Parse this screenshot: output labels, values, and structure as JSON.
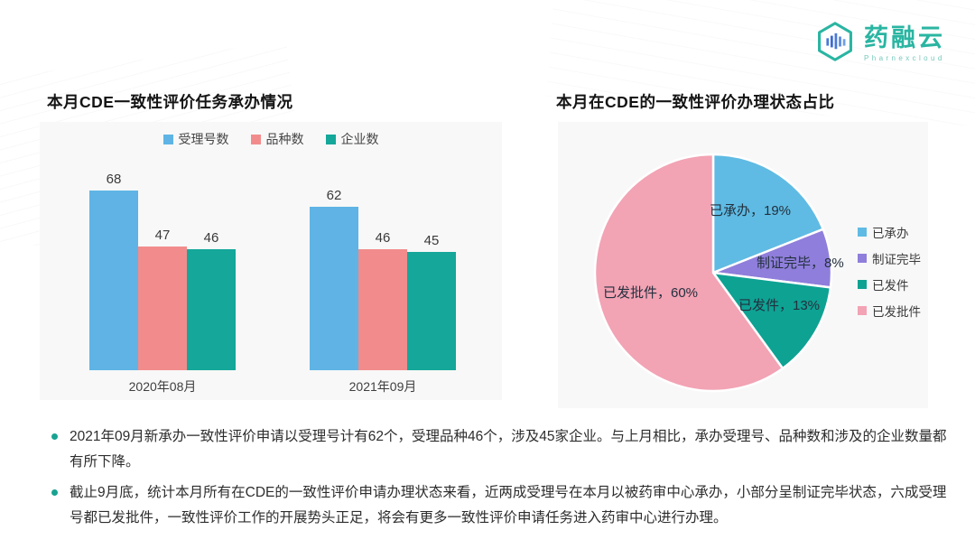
{
  "logo": {
    "brand": "药融云",
    "subbrand": "Pharnexcloud",
    "brand_color": "#2ab5a2"
  },
  "bullets": [
    "2021年09月新承办一致性评价申请以受理号计有62个，受理品种46个，涉及45家企业。与上月相比，承办受理号、品种数和涉及的企业数量都有所下降。",
    "截止9月底，统计本月所有在CDE的一致性评价申请办理状态来看，近两成受理号在本月以被药审中心承办，小部分呈制证完毕状态，六成受理号都已发批件，一致性评价工作的开展势头正足，将会有更多一致性评价申请任务进入药审中心进行办理。"
  ],
  "chart_data": [
    {
      "type": "bar",
      "title": "本月CDE一致性评价任务承办情况",
      "categories": [
        "2020年08月",
        "2021年09月"
      ],
      "series": [
        {
          "name": "受理号数",
          "color": "#5fb4e5",
          "values": [
            68,
            62
          ]
        },
        {
          "name": "品种数",
          "color": "#f28c8c",
          "values": [
            47,
            46
          ]
        },
        {
          "name": "企业数",
          "color": "#14a79a",
          "values": [
            46,
            45
          ]
        }
      ],
      "ylim": [
        0,
        75
      ],
      "grid": false,
      "legend_position": "top",
      "data_labels": true
    },
    {
      "type": "pie",
      "title": "本月在CDE的一致性评价办理状态占比",
      "slices": [
        {
          "name": "已承办",
          "value": 19,
          "label": "已承办，19%",
          "color": "#5fbbe3"
        },
        {
          "name": "制证完毕",
          "value": 8,
          "label": "制证完毕，8%",
          "color": "#8f7edb"
        },
        {
          "name": "已发件",
          "value": 13,
          "label": "已发件，13%",
          "color": "#0ea293"
        },
        {
          "name": "已发批件",
          "value": 60,
          "label": "已发批件，60%",
          "color": "#f2a3b4"
        }
      ],
      "start_angle_deg": 0,
      "direction": "clockwise",
      "legend_position": "right"
    }
  ]
}
